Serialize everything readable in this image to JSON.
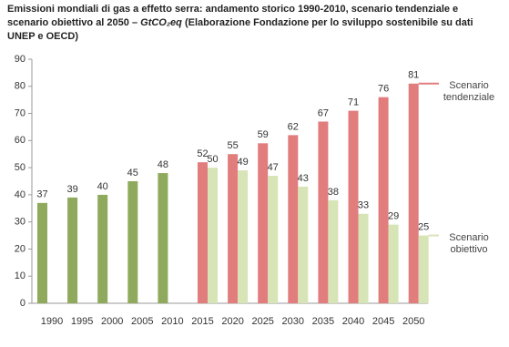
{
  "chart_data": {
    "type": "bar",
    "title": "Emissioni mondiali di gas a effetto serra: andamento storico 1990-2010, scenario tendenziale e scenario obiettivo al 2050 –",
    "unit": "GtCO₂eq",
    "source": "(Elaborazione Fondazione per lo sviluppo sostenibile su dati UNEP e OECD)",
    "categories": [
      "1990",
      "1995",
      "2000",
      "2005",
      "2010",
      "2015",
      "2020",
      "2025",
      "2030",
      "2035",
      "2040",
      "2045",
      "2050"
    ],
    "series": [
      {
        "color": "#8faa5c",
        "values": [
          37,
          39,
          40,
          45,
          48,
          null,
          null,
          null,
          null,
          null,
          null,
          null,
          null
        ]
      },
      {
        "name": "Scenario tendenziale",
        "color": "#e27d7d",
        "values": [
          null,
          null,
          null,
          null,
          null,
          52,
          55,
          59,
          62,
          67,
          71,
          76,
          81
        ]
      },
      {
        "name": "Scenario obiettivo",
        "color": "#d7e4b6",
        "values": [
          null,
          null,
          null,
          null,
          null,
          50,
          49,
          47,
          43,
          38,
          33,
          29,
          25
        ]
      }
    ],
    "ylim": [
      0,
      90
    ],
    "yticks": [
      0,
      10,
      20,
      30,
      40,
      50,
      60,
      70,
      80,
      90
    ],
    "grid": false
  }
}
